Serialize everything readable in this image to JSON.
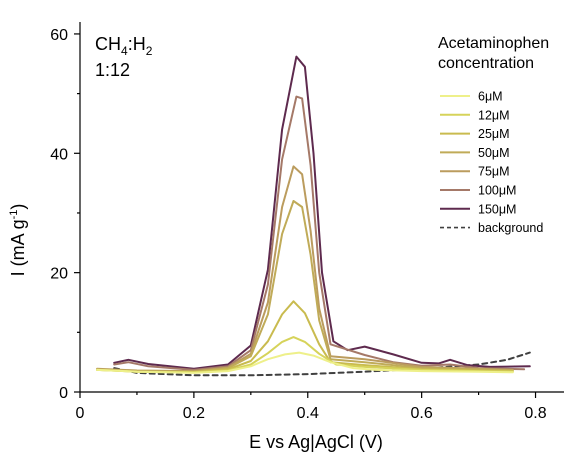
{
  "chart_data": {
    "type": "line",
    "title": "",
    "annotation": {
      "gas_label": "CH",
      "gas_sub1": "4",
      "gas_mid": ":H",
      "gas_sub2": "2",
      "ratio": "1:12"
    },
    "xlabel": "E vs Ag|AgCl (V)",
    "ylabel": {
      "prefix": "I (mA g",
      "sup": "-1",
      "suffix": ")"
    },
    "xlim": [
      0,
      0.85
    ],
    "ylim": [
      0,
      62
    ],
    "xticks": [
      0,
      0.2,
      0.4,
      0.6,
      0.8
    ],
    "xtick_labels": [
      "0",
      "0.2",
      "0.4",
      "0.6",
      "0.8"
    ],
    "yticks": [
      0,
      20,
      40,
      60
    ],
    "ytick_labels": [
      "0",
      "20",
      "40",
      "60"
    ],
    "grid": false,
    "legend": {
      "placement": "right",
      "title_line1": "Acetaminophen",
      "title_line2": "concentration"
    },
    "series": [
      {
        "name": "6μM",
        "color": "#eef08a",
        "dash": false,
        "points": [
          [
            0.03,
            3.7
          ],
          [
            0.1,
            3.4
          ],
          [
            0.2,
            3.2
          ],
          [
            0.26,
            3.5
          ],
          [
            0.3,
            4.3
          ],
          [
            0.33,
            5.5
          ],
          [
            0.36,
            6.3
          ],
          [
            0.385,
            6.6
          ],
          [
            0.41,
            6.1
          ],
          [
            0.44,
            5.0
          ],
          [
            0.48,
            4.0
          ],
          [
            0.52,
            3.7
          ],
          [
            0.6,
            3.5
          ],
          [
            0.7,
            3.4
          ],
          [
            0.76,
            3.3
          ]
        ]
      },
      {
        "name": "12μM",
        "color": "#d6d35a",
        "dash": false,
        "points": [
          [
            0.03,
            3.7
          ],
          [
            0.1,
            3.4
          ],
          [
            0.2,
            3.3
          ],
          [
            0.26,
            3.6
          ],
          [
            0.3,
            4.6
          ],
          [
            0.33,
            6.5
          ],
          [
            0.355,
            8.4
          ],
          [
            0.375,
            9.2
          ],
          [
            0.395,
            8.4
          ],
          [
            0.42,
            6.4
          ],
          [
            0.45,
            4.6
          ],
          [
            0.5,
            4.2
          ],
          [
            0.6,
            3.7
          ],
          [
            0.7,
            3.5
          ],
          [
            0.76,
            3.4
          ]
        ]
      },
      {
        "name": "25μM",
        "color": "#c9bb4f",
        "dash": false,
        "points": [
          [
            0.03,
            3.7
          ],
          [
            0.1,
            3.4
          ],
          [
            0.2,
            3.3
          ],
          [
            0.26,
            3.8
          ],
          [
            0.3,
            5.2
          ],
          [
            0.33,
            8.5
          ],
          [
            0.355,
            13.0
          ],
          [
            0.375,
            15.2
          ],
          [
            0.395,
            13.2
          ],
          [
            0.42,
            8.0
          ],
          [
            0.44,
            5.0
          ],
          [
            0.5,
            4.5
          ],
          [
            0.6,
            3.8
          ],
          [
            0.7,
            3.6
          ],
          [
            0.76,
            3.5
          ]
        ]
      },
      {
        "name": "50μM",
        "color": "#c0ab58",
        "dash": false,
        "points": [
          [
            0.03,
            3.8
          ],
          [
            0.1,
            3.5
          ],
          [
            0.2,
            3.4
          ],
          [
            0.26,
            4.0
          ],
          [
            0.3,
            6.0
          ],
          [
            0.33,
            13.0
          ],
          [
            0.355,
            26.5
          ],
          [
            0.375,
            32.0
          ],
          [
            0.39,
            31.0
          ],
          [
            0.405,
            23.0
          ],
          [
            0.42,
            12.0
          ],
          [
            0.44,
            5.5
          ],
          [
            0.5,
            5.0
          ],
          [
            0.6,
            4.0
          ],
          [
            0.7,
            3.8
          ],
          [
            0.76,
            3.6
          ]
        ]
      },
      {
        "name": "75μM",
        "color": "#bb9c5e",
        "dash": false,
        "points": [
          [
            0.03,
            3.9
          ],
          [
            0.1,
            3.6
          ],
          [
            0.2,
            3.5
          ],
          [
            0.26,
            4.1
          ],
          [
            0.3,
            6.4
          ],
          [
            0.33,
            15.0
          ],
          [
            0.355,
            31.0
          ],
          [
            0.375,
            37.8
          ],
          [
            0.39,
            36.5
          ],
          [
            0.405,
            27.0
          ],
          [
            0.42,
            14.0
          ],
          [
            0.44,
            6.0
          ],
          [
            0.5,
            5.5
          ],
          [
            0.6,
            4.2
          ],
          [
            0.7,
            3.9
          ],
          [
            0.76,
            3.7
          ]
        ]
      },
      {
        "name": "100μM",
        "color": "#a57968",
        "dash": false,
        "points": [
          [
            0.06,
            4.6
          ],
          [
            0.085,
            5.0
          ],
          [
            0.12,
            4.3
          ],
          [
            0.2,
            3.7
          ],
          [
            0.26,
            4.3
          ],
          [
            0.3,
            7.0
          ],
          [
            0.33,
            18.0
          ],
          [
            0.355,
            39.0
          ],
          [
            0.38,
            49.5
          ],
          [
            0.39,
            49.2
          ],
          [
            0.405,
            38.0
          ],
          [
            0.42,
            20.0
          ],
          [
            0.44,
            8.0
          ],
          [
            0.5,
            6.2
          ],
          [
            0.55,
            5.0
          ],
          [
            0.6,
            4.4
          ],
          [
            0.65,
            4.6
          ],
          [
            0.7,
            4.0
          ],
          [
            0.78,
            3.8
          ]
        ]
      },
      {
        "name": "150μM",
        "color": "#5e2a4e",
        "dash": false,
        "points": [
          [
            0.06,
            4.9
          ],
          [
            0.085,
            5.4
          ],
          [
            0.12,
            4.7
          ],
          [
            0.2,
            3.9
          ],
          [
            0.26,
            4.6
          ],
          [
            0.3,
            7.8
          ],
          [
            0.33,
            20.5
          ],
          [
            0.355,
            44.0
          ],
          [
            0.38,
            56.2
          ],
          [
            0.395,
            54.5
          ],
          [
            0.41,
            40.0
          ],
          [
            0.425,
            20.0
          ],
          [
            0.445,
            8.5
          ],
          [
            0.47,
            7.0
          ],
          [
            0.5,
            7.6
          ],
          [
            0.55,
            6.3
          ],
          [
            0.6,
            4.9
          ],
          [
            0.63,
            4.8
          ],
          [
            0.65,
            5.4
          ],
          [
            0.68,
            4.5
          ],
          [
            0.72,
            4.2
          ],
          [
            0.79,
            4.3
          ]
        ]
      },
      {
        "name": "background",
        "color": "#404040",
        "dash": true,
        "points": [
          [
            0.06,
            4.0
          ],
          [
            0.1,
            3.2
          ],
          [
            0.2,
            2.8
          ],
          [
            0.3,
            2.8
          ],
          [
            0.4,
            3.0
          ],
          [
            0.5,
            3.4
          ],
          [
            0.6,
            3.9
          ],
          [
            0.7,
            4.6
          ],
          [
            0.75,
            5.4
          ],
          [
            0.79,
            6.6
          ]
        ]
      }
    ]
  }
}
